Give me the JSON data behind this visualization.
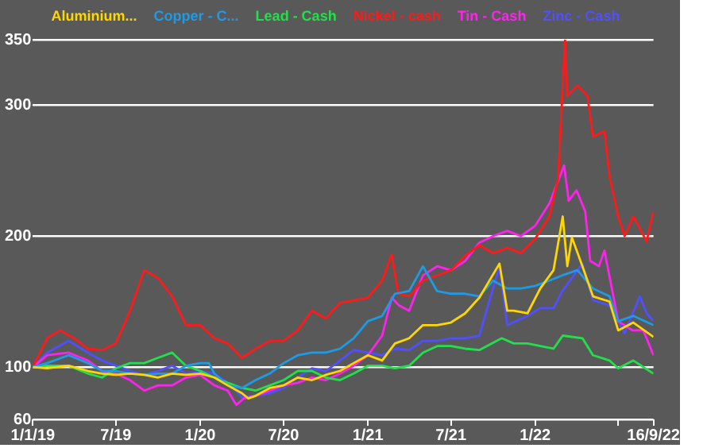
{
  "chart_data": {
    "type": "line",
    "xlim": [
      "2019-01-01",
      "2022-09-16"
    ],
    "xticks": [
      {
        "value": "2019-01-01",
        "label": "1/1/19"
      },
      {
        "value": "2019-07-01",
        "label": "7/19"
      },
      {
        "value": "2020-01-01",
        "label": "1/20"
      },
      {
        "value": "2020-07-01",
        "label": "7/20"
      },
      {
        "value": "2021-01-01",
        "label": "1/21"
      },
      {
        "value": "2021-07-01",
        "label": "7/21"
      },
      {
        "value": "2022-01-01",
        "label": "1/22"
      },
      {
        "value": "2022-07-01",
        "label": null
      },
      {
        "value": "2022-09-16",
        "label": "16/9/22"
      }
    ],
    "ylim": [
      60,
      350
    ],
    "yticks": [
      60,
      100,
      200,
      300,
      350
    ],
    "grid": "y",
    "legend": "top",
    "marker": "none",
    "series": [
      {
        "name": "Aluminium...",
        "color": "#ffd700",
        "x": [
          "2019-01-01",
          "2019-02-01",
          "2019-03-20",
          "2019-05-01",
          "2019-06-01",
          "2019-07-01",
          "2019-08-01",
          "2019-09-01",
          "2019-10-01",
          "2019-11-01",
          "2019-12-01",
          "2020-01-01",
          "2020-02-01",
          "2020-03-01",
          "2020-04-01",
          "2020-04-15",
          "2020-05-01",
          "2020-06-01",
          "2020-07-01",
          "2020-08-01",
          "2020-09-01",
          "2020-10-01",
          "2020-11-01",
          "2020-12-01",
          "2021-01-01",
          "2021-02-01",
          "2021-03-01",
          "2021-04-01",
          "2021-05-01",
          "2021-06-01",
          "2021-07-01",
          "2021-08-01",
          "2021-09-01",
          "2021-10-15",
          "2021-11-01",
          "2021-11-15",
          "2021-12-15",
          "2022-01-12",
          "2022-02-10",
          "2022-03-02",
          "2022-03-12",
          "2022-03-22",
          "2022-04-14",
          "2022-05-07",
          "2022-06-12",
          "2022-07-01",
          "2022-08-03",
          "2022-09-16"
        ],
        "values": [
          100,
          99,
          101,
          97,
          95,
          94,
          95,
          94,
          92,
          95,
          94,
          95,
          92,
          86,
          80,
          76,
          78,
          84,
          86,
          92,
          90,
          94,
          97,
          103,
          109,
          105,
          118,
          122,
          132,
          132,
          134,
          141,
          153,
          179,
          143,
          143,
          141,
          160,
          174,
          215,
          177,
          199,
          177,
          154,
          150,
          128,
          134,
          123
        ]
      },
      {
        "name": "Copper - C...",
        "color": "#1e9be6",
        "x": [
          "2019-01-01",
          "2019-02-01",
          "2019-03-20",
          "2019-05-01",
          "2019-06-01",
          "2019-07-01",
          "2019-08-01",
          "2019-09-01",
          "2019-10-01",
          "2019-11-01",
          "2019-12-01",
          "2020-01-01",
          "2020-01-20",
          "2020-02-01",
          "2020-03-01",
          "2020-04-01",
          "2020-05-01",
          "2020-06-01",
          "2020-07-01",
          "2020-08-01",
          "2020-09-01",
          "2020-10-01",
          "2020-11-01",
          "2020-12-01",
          "2021-01-01",
          "2021-02-01",
          "2021-03-01",
          "2021-04-01",
          "2021-05-01",
          "2021-06-01",
          "2021-07-01",
          "2021-08-01",
          "2021-09-01",
          "2021-10-01",
          "2021-11-01",
          "2021-12-01",
          "2022-01-01",
          "2022-02-01",
          "2022-03-01",
          "2022-04-03",
          "2022-05-07",
          "2022-06-12",
          "2022-07-01",
          "2022-08-03",
          "2022-09-16"
        ],
        "values": [
          100,
          103,
          109,
          103,
          97,
          97,
          95,
          94,
          95,
          95,
          101,
          103,
          103,
          95,
          86,
          84,
          90,
          95,
          103,
          109,
          111,
          111,
          114,
          122,
          135,
          139,
          156,
          158,
          177,
          158,
          156,
          156,
          154,
          166,
          160,
          160,
          162,
          166,
          170,
          174,
          160,
          154,
          135,
          139,
          132
        ]
      },
      {
        "name": "Lead - Cash",
        "color": "#22e04a",
        "x": [
          "2019-01-01",
          "2019-02-01",
          "2019-03-20",
          "2019-05-01",
          "2019-06-01",
          "2019-07-01",
          "2019-08-01",
          "2019-09-01",
          "2019-10-01",
          "2019-11-01",
          "2019-12-01",
          "2020-01-01",
          "2020-02-01",
          "2020-03-01",
          "2020-04-01",
          "2020-05-01",
          "2020-06-01",
          "2020-07-01",
          "2020-08-01",
          "2020-09-01",
          "2020-10-01",
          "2020-11-01",
          "2020-12-01",
          "2021-01-01",
          "2021-02-01",
          "2021-03-01",
          "2021-04-01",
          "2021-05-01",
          "2021-06-01",
          "2021-07-01",
          "2021-08-01",
          "2021-09-01",
          "2021-10-20",
          "2021-11-15",
          "2021-12-15",
          "2022-01-12",
          "2022-02-10",
          "2022-03-02",
          "2022-04-14",
          "2022-05-07",
          "2022-06-12",
          "2022-07-01",
          "2022-08-03",
          "2022-09-16"
        ],
        "values": [
          100,
          101,
          101,
          95,
          92,
          99,
          103,
          103,
          107,
          111,
          101,
          97,
          92,
          88,
          84,
          82,
          86,
          90,
          97,
          97,
          92,
          90,
          95,
          101,
          101,
          99,
          101,
          111,
          116,
          116,
          114,
          113,
          122,
          118,
          118,
          116,
          114,
          124,
          122,
          109,
          105,
          99,
          105,
          95
        ]
      },
      {
        "name": "Nickel - cash",
        "color": "#ff1a1a",
        "x": [
          "2019-01-01",
          "2019-02-01",
          "2019-03-01",
          "2019-04-01",
          "2019-05-01",
          "2019-06-01",
          "2019-07-01",
          "2019-08-01",
          "2019-09-01",
          "2019-10-01",
          "2019-11-01",
          "2019-12-01",
          "2020-01-01",
          "2020-02-01",
          "2020-03-01",
          "2020-04-01",
          "2020-05-01",
          "2020-06-01",
          "2020-07-01",
          "2020-08-01",
          "2020-09-01",
          "2020-10-01",
          "2020-11-01",
          "2020-12-01",
          "2021-01-01",
          "2021-02-01",
          "2021-02-22",
          "2021-03-08",
          "2021-04-01",
          "2021-05-01",
          "2021-06-01",
          "2021-07-01",
          "2021-08-01",
          "2021-09-01",
          "2021-10-01",
          "2021-11-01",
          "2021-12-01",
          "2022-01-01",
          "2022-02-01",
          "2022-02-20",
          "2022-03-07",
          "2022-03-12",
          "2022-04-03",
          "2022-04-25",
          "2022-05-07",
          "2022-06-01",
          "2022-06-12",
          "2022-07-01",
          "2022-07-15",
          "2022-08-03",
          "2022-08-20",
          "2022-09-01",
          "2022-09-16"
        ],
        "values": [
          100,
          122,
          128,
          122,
          114,
          113,
          118,
          143,
          174,
          168,
          154,
          132,
          132,
          122,
          118,
          107,
          114,
          120,
          120,
          128,
          143,
          137,
          149,
          151,
          153,
          166,
          186,
          156,
          154,
          166,
          170,
          174,
          185,
          193,
          187,
          191,
          187,
          198,
          215,
          244,
          350,
          307,
          315,
          307,
          276,
          280,
          246,
          215,
          200,
          215,
          204,
          196,
          219
        ]
      },
      {
        "name": "Tin - Cash",
        "color": "#ff22ee",
        "x": [
          "2019-01-01",
          "2019-02-01",
          "2019-03-20",
          "2019-05-01",
          "2019-06-01",
          "2019-07-01",
          "2019-08-01",
          "2019-09-01",
          "2019-10-01",
          "2019-11-01",
          "2019-12-01",
          "2020-01-01",
          "2020-02-01",
          "2020-03-01",
          "2020-03-20",
          "2020-04-05",
          "2020-05-01",
          "2020-06-01",
          "2020-07-01",
          "2020-08-01",
          "2020-09-01",
          "2020-10-01",
          "2020-11-01",
          "2020-12-01",
          "2021-01-01",
          "2021-02-01",
          "2021-02-22",
          "2021-03-10",
          "2021-04-01",
          "2021-05-01",
          "2021-06-01",
          "2021-07-01",
          "2021-08-01",
          "2021-09-01",
          "2021-10-01",
          "2021-11-01",
          "2021-12-01",
          "2022-01-01",
          "2022-02-01",
          "2022-03-05",
          "2022-03-15",
          "2022-04-01",
          "2022-04-20",
          "2022-05-01",
          "2022-05-20",
          "2022-06-01",
          "2022-07-01",
          "2022-08-01",
          "2022-08-25",
          "2022-09-16"
        ],
        "values": [
          100,
          109,
          111,
          105,
          97,
          95,
          90,
          82,
          86,
          86,
          92,
          94,
          86,
          82,
          71,
          76,
          78,
          82,
          86,
          88,
          92,
          90,
          95,
          101,
          109,
          124,
          153,
          147,
          143,
          170,
          177,
          174,
          181,
          195,
          200,
          204,
          200,
          208,
          225,
          254,
          227,
          235,
          219,
          181,
          177,
          189,
          135,
          128,
          128,
          109
        ]
      },
      {
        "name": "Zinc - Cash",
        "color": "#5050ff",
        "x": [
          "2019-01-01",
          "2019-02-01",
          "2019-03-20",
          "2019-05-01",
          "2019-06-01",
          "2019-07-01",
          "2019-08-01",
          "2019-09-01",
          "2019-10-01",
          "2019-11-01",
          "2019-12-01",
          "2020-01-01",
          "2020-02-01",
          "2020-03-01",
          "2020-04-01",
          "2020-05-01",
          "2020-06-01",
          "2020-07-01",
          "2020-08-01",
          "2020-09-01",
          "2020-10-01",
          "2020-11-01",
          "2020-12-01",
          "2021-01-01",
          "2021-02-01",
          "2021-03-01",
          "2021-04-01",
          "2021-05-01",
          "2021-06-01",
          "2021-07-01",
          "2021-08-01",
          "2021-09-01",
          "2021-10-15",
          "2021-11-01",
          "2021-11-20",
          "2021-12-15",
          "2022-01-12",
          "2022-02-10",
          "2022-03-01",
          "2022-04-14",
          "2022-05-07",
          "2022-06-12",
          "2022-07-15",
          "2022-08-17",
          "2022-09-01",
          "2022-09-16"
        ],
        "values": [
          100,
          111,
          120,
          111,
          105,
          101,
          97,
          94,
          97,
          101,
          95,
          97,
          95,
          88,
          77,
          78,
          80,
          84,
          92,
          99,
          97,
          105,
          113,
          111,
          109,
          114,
          113,
          120,
          120,
          122,
          122,
          124,
          177,
          132,
          135,
          139,
          145,
          145,
          158,
          179,
          151,
          147,
          126,
          154,
          141,
          135
        ]
      }
    ]
  }
}
